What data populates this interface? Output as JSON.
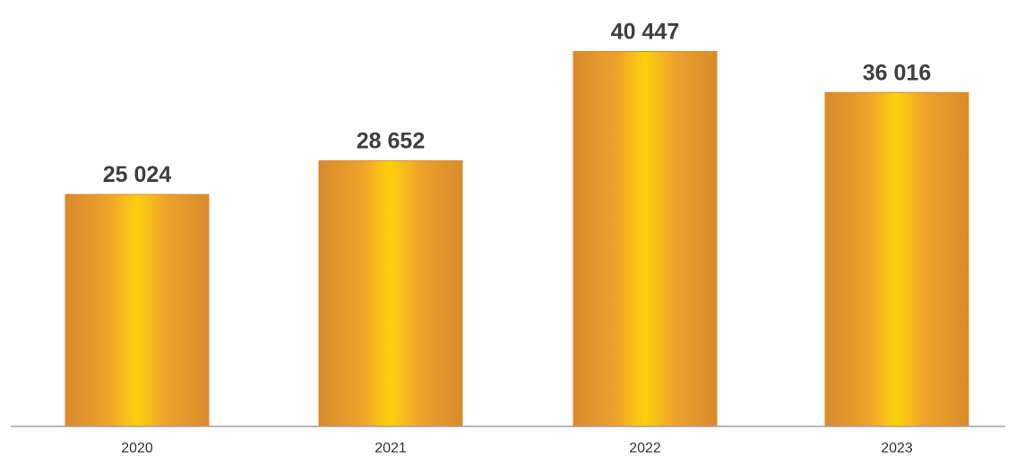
{
  "chart_data": {
    "type": "bar",
    "title": "",
    "xlabel": "",
    "ylabel": "",
    "categories": [
      "2020",
      "2021",
      "2022",
      "2023"
    ],
    "values": [
      25024,
      28652,
      40447,
      36016
    ],
    "value_labels": [
      "25 024",
      "28 652",
      "40 447",
      "36 016"
    ],
    "ylim": [
      0,
      46000
    ],
    "grid": false,
    "legend": "none",
    "colors": {
      "bar_edge": "#d98a2b",
      "bar_mid": "#f3b52a",
      "bar_center": "#ffd10a",
      "axis": "#a0a0a0"
    }
  }
}
